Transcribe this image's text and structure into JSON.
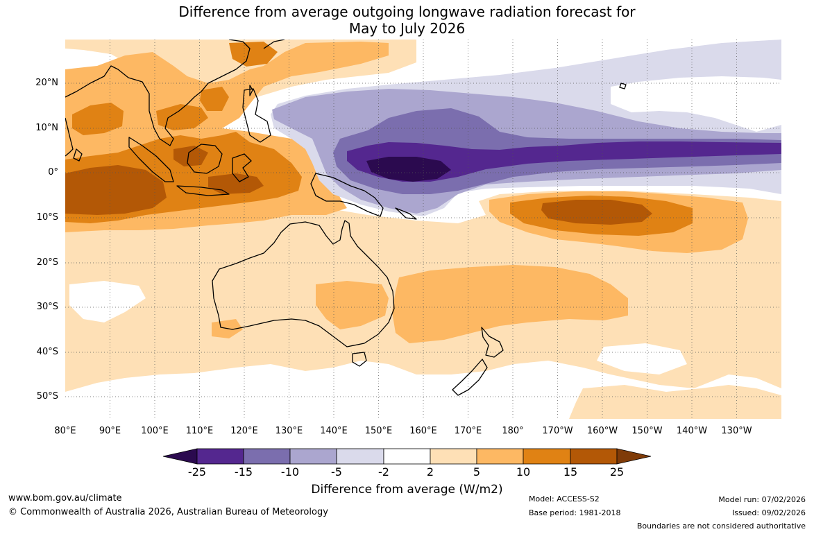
{
  "title": {
    "line1": "Difference from average outgoing longwave radiation forecast for",
    "line2": "May to July 2026"
  },
  "map": {
    "latitudes": [
      "20°N",
      "10°N",
      "0°",
      "10°S",
      "20°S",
      "30°S",
      "40°S",
      "50°S"
    ],
    "longitudes": [
      "80°E",
      "90°E",
      "100°E",
      "110°E",
      "120°E",
      "130°E",
      "140°E",
      "150°E",
      "160°E",
      "170°E",
      "180°",
      "170°W",
      "160°W",
      "150°W",
      "140°W",
      "130°W"
    ]
  },
  "colorbar": {
    "title": "Difference from average (W/m2)",
    "ticks": [
      "-25",
      "-15",
      "-10",
      "-5",
      "-2",
      "2",
      "5",
      "10",
      "15",
      "25"
    ],
    "colors": [
      "#2b0a4f",
      "#54278f",
      "#7b6eae",
      "#aba6cf",
      "#dadaeb",
      "#ffffff",
      "#fee0b6",
      "#fdb863",
      "#e08214",
      "#b35806",
      "#7f3b08"
    ]
  },
  "footer": {
    "website": "www.bom.gov.au/climate",
    "copyright": "© Commonwealth of Australia 2026, Australian Bureau of Meteorology",
    "model": "Model: ACCESS-S2",
    "base_period": "Base period: 1981-2018",
    "model_run": "Model run: 07/02/2026",
    "issued": "Issued: 09/02/2026",
    "disclaimer": "Boundaries are not considered authoritative"
  }
}
